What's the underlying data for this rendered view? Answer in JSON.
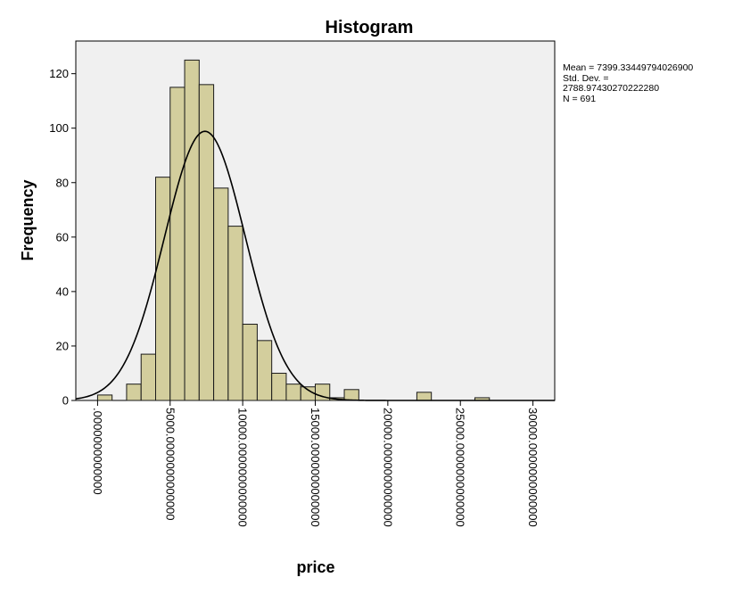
{
  "chart_data": {
    "type": "bar",
    "title": "Histogram",
    "xlabel": "price",
    "ylabel": "Frequency",
    "xlim": [
      -1500,
      31500
    ],
    "ylim": [
      0,
      132
    ],
    "x_ticks": [
      {
        "value": 0,
        "label": ".0000000000000"
      },
      {
        "value": 5000,
        "label": "5000.0000000000000"
      },
      {
        "value": 10000,
        "label": "10000.0000000000000"
      },
      {
        "value": 15000,
        "label": "15000.0000000000000"
      },
      {
        "value": 20000,
        "label": "20000.0000000000000"
      },
      {
        "value": 25000,
        "label": "25000.0000000000000"
      },
      {
        "value": 30000,
        "label": "30000.0000000000000"
      }
    ],
    "y_ticks": [
      0,
      20,
      40,
      60,
      80,
      100,
      120
    ],
    "bin_width": 1000,
    "bins": [
      {
        "start": 0,
        "count": 2
      },
      {
        "start": 2000,
        "count": 6
      },
      {
        "start": 3000,
        "count": 17
      },
      {
        "start": 4000,
        "count": 82
      },
      {
        "start": 5000,
        "count": 115
      },
      {
        "start": 6000,
        "count": 125
      },
      {
        "start": 7000,
        "count": 116
      },
      {
        "start": 8000,
        "count": 78
      },
      {
        "start": 9000,
        "count": 64
      },
      {
        "start": 10000,
        "count": 28
      },
      {
        "start": 11000,
        "count": 22
      },
      {
        "start": 12000,
        "count": 10
      },
      {
        "start": 13000,
        "count": 6
      },
      {
        "start": 14000,
        "count": 5
      },
      {
        "start": 15000,
        "count": 6
      },
      {
        "start": 16000,
        "count": 1
      },
      {
        "start": 17000,
        "count": 4
      },
      {
        "start": 22000,
        "count": 3
      },
      {
        "start": 26000,
        "count": 1
      }
    ],
    "normal_curve": {
      "mean": 7399.334497940269,
      "std_dev": 2788.9743027022228,
      "n": 691
    },
    "stats_text": [
      "Mean = 7399.33449794026900",
      "Std. Dev. =",
      "2788.97430270222280",
      "N = 691"
    ],
    "grid": false,
    "legend": "none",
    "colors": {
      "bar_fill": "#d3ce9d",
      "bar_stroke": "#1a1a1a",
      "plot_bg": "#f0f0f0",
      "curve": "#000000"
    }
  }
}
